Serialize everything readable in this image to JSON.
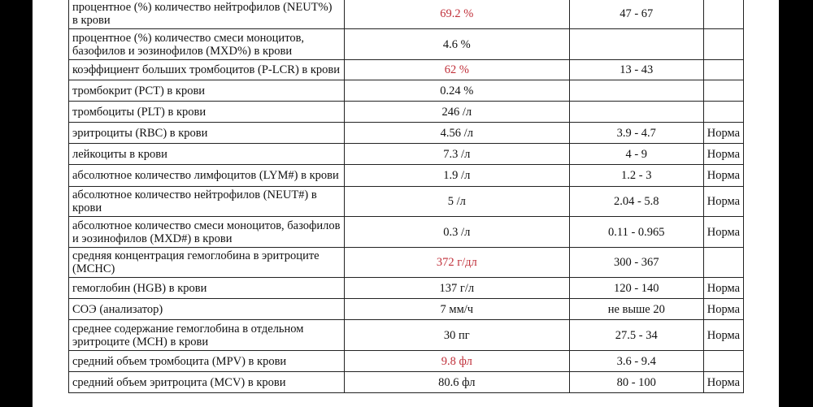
{
  "accent_colors": {
    "abnormal_value": "#c0303a",
    "text": "#111111"
  },
  "rows": [
    {
      "name": "процентное (%) количество нейтрофилов (NEUT%) в крови",
      "value": "69.2 %",
      "ref": "47 - 67",
      "note": "",
      "abnormal": true,
      "h": 37
    },
    {
      "name": "процентное (%) количество смеси моноцитов, базофилов и эозинофилов (MXD%) в крови",
      "value": "4.6 %",
      "ref": "",
      "note": "",
      "abnormal": false,
      "h": 38
    },
    {
      "name": "коэффициент больших тромбоцитов (P-LCR) в крови",
      "value": "62 %",
      "ref": "13 - 43",
      "note": "",
      "abnormal": true,
      "h": 25
    },
    {
      "name": "тромбокрит (PCT) в крови",
      "value": "0.24 %",
      "ref": "",
      "note": "",
      "abnormal": false,
      "h": 26
    },
    {
      "name": "тромбоциты (PLT) в крови",
      "value": "246 /л",
      "ref": "",
      "note": "",
      "abnormal": false,
      "h": 26
    },
    {
      "name": "эритроциты (RBC) в крови",
      "value": "4.56 /л",
      "ref": "3.9 - 4.7",
      "note": "Норма",
      "abnormal": false,
      "h": 26
    },
    {
      "name": "лейкоциты в крови",
      "value": "7.3 /л",
      "ref": "4 - 9",
      "note": "Норма",
      "abnormal": false,
      "h": 26
    },
    {
      "name": "абсолютное количество лимфоцитов (LYM#) в крови",
      "value": "1.9 /л",
      "ref": "1.2 - 3",
      "note": "Норма",
      "abnormal": false,
      "h": 27
    },
    {
      "name": "абсолютное количество нейтрофилов (NEUT#) в крови",
      "value": "5 /л",
      "ref": "2.04 - 5.8",
      "note": "Норма",
      "abnormal": false,
      "h": 37
    },
    {
      "name": "абсолютное количество смеси моноцитов, базофилов и эозинофилов (MXD#) в крови",
      "value": "0.3 /л",
      "ref": "0.11 - 0.965",
      "note": "Норма",
      "abnormal": false,
      "h": 38
    },
    {
      "name": "средняя концентрация гемоглобина в эритроците (MCHC)",
      "value": "372 г/дл",
      "ref": "300 - 367",
      "note": "",
      "abnormal": true,
      "h": 37
    },
    {
      "name": "гемоглобин (HGB) в крови",
      "value": "137 г/л",
      "ref": "120 - 140",
      "note": "Норма",
      "abnormal": false,
      "h": 26
    },
    {
      "name": "СОЭ (анализатор)",
      "value": "7 мм/ч",
      "ref": "не выше 20",
      "note": "Норма",
      "abnormal": false,
      "h": 26
    },
    {
      "name": "среднее содержание гемоглобина в отдельном эритроците (MCH) в крови",
      "value": "30 пг",
      "ref": "27.5 - 34",
      "note": "Норма",
      "abnormal": false,
      "h": 38
    },
    {
      "name": "средний объем тромбоцита (MPV) в крови",
      "value": "9.8 фл",
      "ref": "3.6 - 9.4",
      "note": "",
      "abnormal": true,
      "h": 26
    },
    {
      "name": "средний объем эритроцита (MCV) в крови",
      "value": "80.6 фл",
      "ref": "80 - 100",
      "note": "Норма",
      "abnormal": false,
      "h": 26
    }
  ]
}
